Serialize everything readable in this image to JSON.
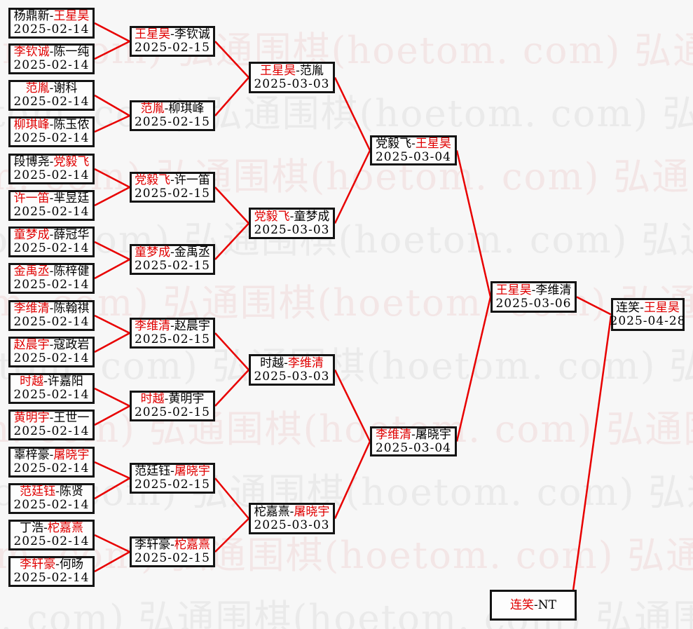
{
  "page": {
    "background": "#f7f7f7"
  },
  "watermark": {
    "text": "弘通围棋(hoetom. com)",
    "pink": "#f3e6e6",
    "gray": "#eaeaea"
  },
  "bracket": {
    "line_color": "#e80000",
    "winner_color": "#e00000",
    "separator": "-",
    "rounds": [
      {
        "matches": [
          {
            "p1": "杨鼎新",
            "p2": "王星昊",
            "red": "p2",
            "date": "2025-02-14"
          },
          {
            "p1": "李钦诚",
            "p2": "陈一纯",
            "red": "p1",
            "date": "2025-02-14"
          },
          {
            "p1": "范胤",
            "p2": "谢科",
            "red": "p1",
            "date": "2025-02-14"
          },
          {
            "p1": "柳琪峰",
            "p2": "陈玉侬",
            "red": "p1",
            "date": "2025-02-14"
          },
          {
            "p1": "段博尧",
            "p2": "党毅飞",
            "red": "p2",
            "date": "2025-02-14"
          },
          {
            "p1": "许一笛",
            "p2": "芈昱廷",
            "red": "p1",
            "date": "2025-02-14"
          },
          {
            "p1": "童梦成",
            "p2": "薛冠华",
            "red": "p1",
            "date": "2025-02-14"
          },
          {
            "p1": "金禹丞",
            "p2": "陈梓健",
            "red": "p1",
            "date": "2025-02-14"
          },
          {
            "p1": "李维清",
            "p2": "陈翰祺",
            "red": "p1",
            "date": "2025-02-14"
          },
          {
            "p1": "赵晨宇",
            "p2": "寇政岩",
            "red": "p1",
            "date": "2025-02-14"
          },
          {
            "p1": "时越",
            "p2": "许嘉阳",
            "red": "p1",
            "date": "2025-02-14"
          },
          {
            "p1": "黄明宇",
            "p2": "王世一",
            "red": "p1",
            "date": "2025-02-14"
          },
          {
            "p1": "辜梓豪",
            "p2": "屠晓宇",
            "red": "p2",
            "date": "2025-02-14"
          },
          {
            "p1": "范廷钰",
            "p2": "陈贤",
            "red": "p1",
            "date": "2025-02-14"
          },
          {
            "p1": "丁浩",
            "p2": "柁嘉熹",
            "red": "p2",
            "date": "2025-02-14"
          },
          {
            "p1": "李轩豪",
            "p2": "何旸",
            "red": "p1",
            "date": "2025-02-14"
          }
        ]
      },
      {
        "matches": [
          {
            "p1": "王星昊",
            "p2": "李钦诚",
            "red": "p1",
            "date": "2025-02-15"
          },
          {
            "p1": "范胤",
            "p2": "柳琪峰",
            "red": "p1",
            "date": "2025-02-15"
          },
          {
            "p1": "党毅飞",
            "p2": "许一笛",
            "red": "p1",
            "date": "2025-02-15"
          },
          {
            "p1": "童梦成",
            "p2": "金禹丞",
            "red": "p1",
            "date": "2025-02-15"
          },
          {
            "p1": "李维清",
            "p2": "赵晨宇",
            "red": "p1",
            "date": "2025-02-15"
          },
          {
            "p1": "时越",
            "p2": "黄明宇",
            "red": "p1",
            "date": "2025-02-15"
          },
          {
            "p1": "范廷钰",
            "p2": "屠晓宇",
            "red": "p2",
            "date": "2025-02-15"
          },
          {
            "p1": "李轩豪",
            "p2": "柁嘉熹",
            "red": "p2",
            "date": "2025-02-15"
          }
        ]
      },
      {
        "matches": [
          {
            "p1": "王星昊",
            "p2": "范胤",
            "red": "p1",
            "date": "2025-03-03"
          },
          {
            "p1": "党毅飞",
            "p2": "童梦成",
            "red": "p1",
            "date": "2025-03-03"
          },
          {
            "p1": "时越",
            "p2": "李维清",
            "red": "p2",
            "date": "2025-03-03"
          },
          {
            "p1": "柁嘉熹",
            "p2": "屠晓宇",
            "red": "p2",
            "date": "2025-03-03"
          }
        ]
      },
      {
        "matches": [
          {
            "p1": "党毅飞",
            "p2": "王星昊",
            "red": "p2",
            "date": "2025-03-04"
          },
          {
            "p1": "李维清",
            "p2": "屠晓宇",
            "red": "p1",
            "date": "2025-03-04"
          }
        ]
      },
      {
        "matches": [
          {
            "p1": "王星昊",
            "p2": "李维清",
            "red": "p1",
            "date": "2025-03-06"
          }
        ]
      },
      {
        "matches": [
          {
            "p1": "连笑",
            "p2": "王星昊",
            "red": "p2",
            "date": "2025-04-28"
          }
        ]
      },
      {
        "matches": [
          {
            "p1": "连笑",
            "p2": "NT",
            "red": "p1",
            "date": ""
          }
        ]
      }
    ]
  }
}
